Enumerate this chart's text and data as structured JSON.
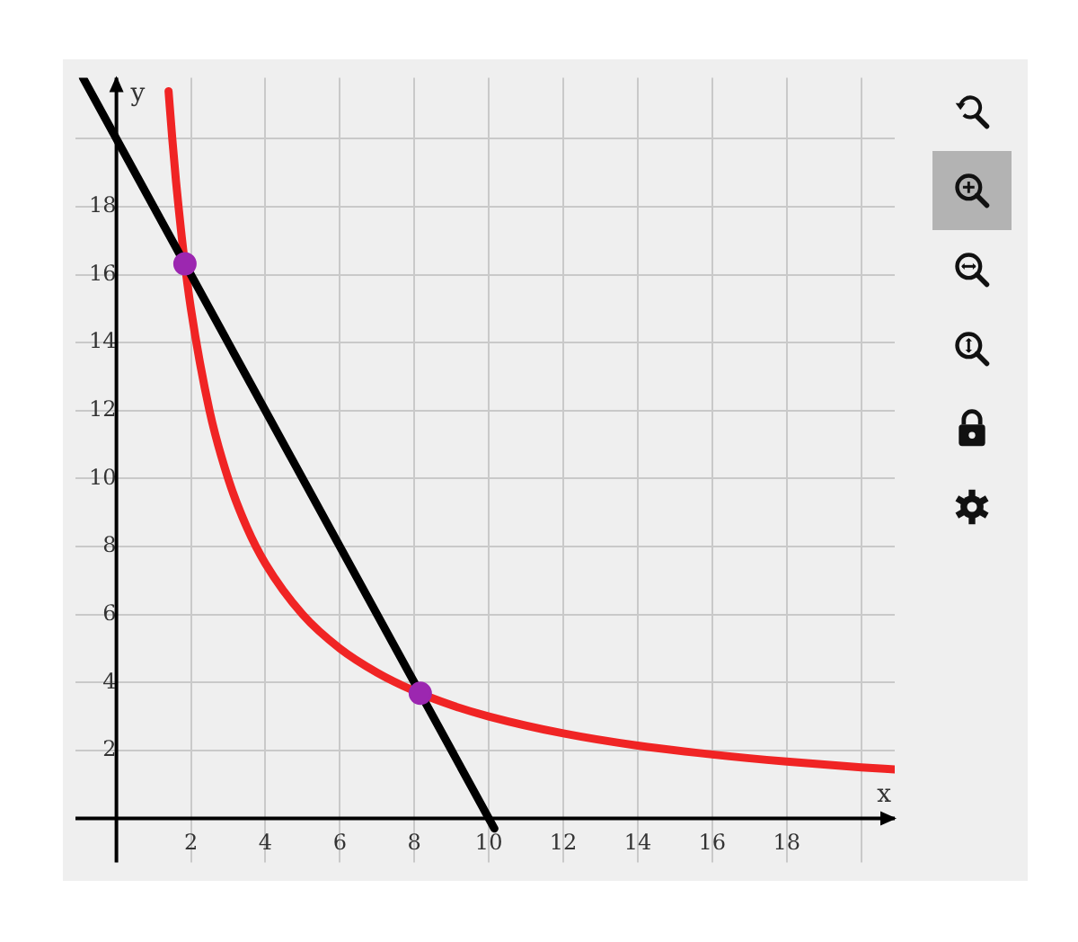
{
  "chart_data": {
    "type": "line",
    "xlabel": "x",
    "ylabel": "y",
    "xlim": [
      -1.1,
      20.9
    ],
    "ylim": [
      -1.3,
      21.8
    ],
    "xticks": [
      {
        "value": 0,
        "label": null
      },
      2,
      4,
      6,
      8,
      10,
      12,
      14,
      16,
      18,
      {
        "value": 20,
        "label": null
      }
    ],
    "yticks": [
      {
        "value": 0,
        "label": null
      },
      2,
      4,
      6,
      8,
      10,
      12,
      14,
      16,
      18,
      {
        "value": 20,
        "label": null
      }
    ],
    "grid": true,
    "legend": false,
    "series": [
      {
        "marker": "none",
        "color": "#000000",
        "x": [
          -0.9,
          10.15
        ],
        "values": [
          21.8,
          -0.3
        ]
      },
      {
        "marker": "none",
        "color": "#f02424",
        "x": [
          1.4,
          1.5,
          1.6,
          1.8,
          2,
          2.5,
          3,
          3.5,
          4,
          5,
          6,
          7,
          8,
          9,
          10,
          12,
          14,
          16,
          18,
          20,
          20.9
        ],
        "values": [
          21.4,
          20,
          18.75,
          16.67,
          15,
          12,
          10,
          8.57,
          7.5,
          6,
          5,
          4.29,
          3.75,
          3.33,
          3,
          2.5,
          2.14,
          1.88,
          1.67,
          1.5,
          1.44
        ]
      },
      {
        "type": "scatter",
        "marker": "circle",
        "color": "#9c27b0",
        "x": [
          1.84,
          8.16
        ],
        "values": [
          16.32,
          3.68
        ]
      }
    ]
  }
}
